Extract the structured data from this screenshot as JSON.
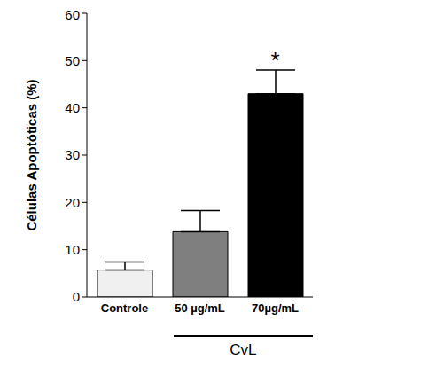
{
  "chart_data": {
    "type": "bar",
    "y_label": "Células Apoptóticas (%)",
    "categories": [
      "Controle",
      "50 µg/mL",
      "70µg/mL"
    ],
    "values": [
      5.7,
      13.8,
      43
    ],
    "errors": [
      1.7,
      4.5,
      5
    ],
    "colors": [
      "#f0f0f0",
      "#7f7f7f",
      "#000000"
    ],
    "ylim": [
      0,
      60
    ],
    "yticks": [
      0,
      10,
      20,
      30,
      40,
      50,
      60
    ],
    "annotations": [
      {
        "text": "*",
        "category": "70µg/mL"
      }
    ],
    "group_labels": [
      {
        "text": "CvL",
        "categories": [
          "50 µg/mL",
          "70µg/mL"
        ]
      }
    ]
  }
}
